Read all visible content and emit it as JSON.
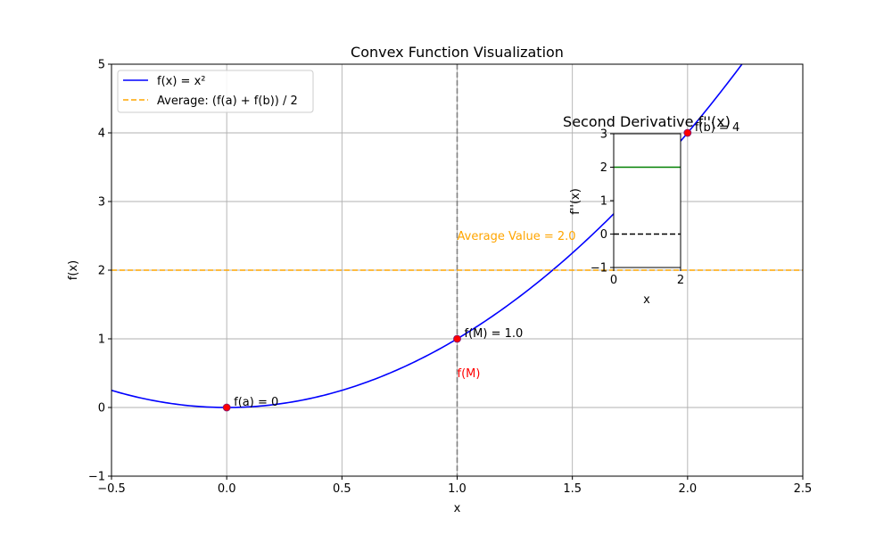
{
  "chart_data": [
    {
      "type": "line",
      "title": "Convex Function Visualization",
      "xlabel": "x",
      "ylabel": "f(x)",
      "xlim": [
        -0.5,
        2.5
      ],
      "ylim": [
        -1,
        5
      ],
      "xticks": [
        -0.5,
        0.0,
        0.5,
        1.0,
        1.5,
        2.0,
        2.5
      ],
      "xtick_labels": [
        "−0.5",
        "0.0",
        "0.5",
        "1.0",
        "1.5",
        "2.0",
        "2.5"
      ],
      "yticks": [
        -1,
        0,
        1,
        2,
        3,
        4,
        5
      ],
      "ytick_labels": [
        "−1",
        "0",
        "1",
        "2",
        "3",
        "4",
        "5"
      ],
      "grid": true,
      "legend_position": "top-left",
      "series": [
        {
          "name": "f(x) = x²",
          "color": "#0000ff",
          "style": "solid",
          "x": [
            -0.5,
            -0.25,
            0.0,
            0.25,
            0.5,
            0.75,
            1.0,
            1.25,
            1.5,
            1.75,
            2.0,
            2.25
          ],
          "y": [
            0.25,
            0.0625,
            0.0,
            0.0625,
            0.25,
            0.5625,
            1.0,
            1.5625,
            2.25,
            3.0625,
            4.0,
            5.0625
          ]
        },
        {
          "name": "Average: (f(a) + f(b)) / 2",
          "color": "#ffa500",
          "style": "dashed",
          "x": [
            -0.5,
            2.5
          ],
          "y": [
            2.0,
            2.0
          ]
        }
      ],
      "vertical_line": {
        "x": 1.0,
        "color": "#808080",
        "style": "dashed"
      },
      "points": [
        {
          "x": 0.0,
          "y": 0.0,
          "label": "f(a) = 0"
        },
        {
          "x": 1.0,
          "y": 1.0,
          "label": "f(M) = 1.0"
        },
        {
          "x": 2.0,
          "y": 4.0,
          "label": "f(b) = 4"
        }
      ],
      "point_color": "#ff0000",
      "annotations": [
        {
          "text": "Average Value = 2.0",
          "x": 1.0,
          "y": 2.5,
          "color": "#ffa500"
        },
        {
          "text": "f(M)",
          "x": 1.0,
          "y": 0.5,
          "color": "#ff0000"
        }
      ]
    },
    {
      "type": "line",
      "title": "Second Derivative f''(x)",
      "xlabel": "x",
      "ylabel": "f''(x)",
      "xlim": [
        0,
        2
      ],
      "ylim": [
        -1,
        3
      ],
      "xticks": [
        0,
        2
      ],
      "xtick_labels": [
        "0",
        "2"
      ],
      "yticks": [
        -1,
        0,
        1,
        2,
        3
      ],
      "ytick_labels": [
        "−1",
        "0",
        "1",
        "2",
        "3"
      ],
      "grid": false,
      "series": [
        {
          "color": "#008000",
          "style": "solid",
          "x": [
            0,
            2
          ],
          "y": [
            2,
            2
          ]
        },
        {
          "color": "#000000",
          "style": "dashed",
          "x": [
            0,
            2
          ],
          "y": [
            0,
            0
          ]
        }
      ]
    }
  ]
}
